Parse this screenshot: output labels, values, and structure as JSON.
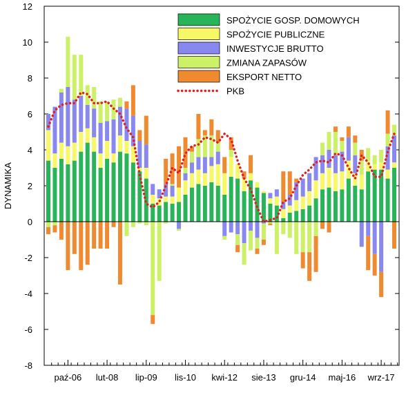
{
  "chart_data": {
    "type": "bar",
    "stacked": true,
    "ylabel": "DYNAMIKA",
    "xlabel": "",
    "ylim": [
      -8,
      12
    ],
    "yticks": [
      -8,
      -6,
      -4,
      -2,
      0,
      2,
      4,
      6,
      8,
      10,
      12
    ],
    "x_tick_labels": [
      {
        "label": "paź-06",
        "index": 5
      },
      {
        "label": "lut-08",
        "index": 11
      },
      {
        "label": "lip-09",
        "index": 17
      },
      {
        "label": "lis-10",
        "index": 23
      },
      {
        "label": "kwi-12",
        "index": 29
      },
      {
        "label": "sie-13",
        "index": 35
      },
      {
        "label": "gru-14",
        "index": 41
      },
      {
        "label": "maj-16",
        "index": 47
      },
      {
        "label": "wrz-17",
        "index": 53
      }
    ],
    "n_periods": 54,
    "legend_position": "top-right",
    "series": [
      {
        "name": "SPOŻYCIE GOSP. DOMOWYCH",
        "color": "#2ab45a",
        "values": [
          3.4,
          3.0,
          3.5,
          3.2,
          3.4,
          3.9,
          4.4,
          3.9,
          3.0,
          3.5,
          3.3,
          3.9,
          3.8,
          3.3,
          2.8,
          2.4,
          1.0,
          0.9,
          1.1,
          1.0,
          1.1,
          1.5,
          1.9,
          2.1,
          2.0,
          2.2,
          2.0,
          1.5,
          2.5,
          2.4,
          1.7,
          2.3,
          1.9,
          1.6,
          1.0,
          0.9,
          0.2,
          0.5,
          0.6,
          0.7,
          0.9,
          1.3,
          1.8,
          1.9,
          1.7,
          1.8,
          2.4,
          2.0,
          1.8,
          2.8,
          2.9,
          2.9,
          2.4,
          3.0
        ]
      },
      {
        "name": "SPOŻYCIE PUBLICZNE",
        "color": "#f8f867",
        "values": [
          1.7,
          0.8,
          0.9,
          1.0,
          1.0,
          1.1,
          0.8,
          0.8,
          0.8,
          1.0,
          0.5,
          0.9,
          0.7,
          0.9,
          0.2,
          0.6,
          0.5,
          0.4,
          0.3,
          0.4,
          0.8,
          0.8,
          0.8,
          0.8,
          0.7,
          0.9,
          1.2,
          1.2,
          1.1,
          0.8,
          0.7,
          0.4,
          0.3,
          0.1,
          0.3,
          0.5,
          0.5,
          0.4,
          0.6,
          0.7,
          0.8,
          1.0,
          0.9,
          1.1,
          1.0,
          1.0,
          1.0,
          0.7,
          0.8,
          0.6,
          0.3,
          0.4,
          0.5,
          0.3
        ]
      },
      {
        "name": "INWESTYCJE BRUTTO",
        "color": "#8888ee",
        "values": [
          0.9,
          2.6,
          2.8,
          3.3,
          2.4,
          2.0,
          1.3,
          1.6,
          1.7,
          1.1,
          1.9,
          1.6,
          1.8,
          1.7,
          1.5,
          1.3,
          0.6,
          0.5,
          0.7,
          0.6,
          -0.4,
          0.4,
          0.6,
          0.7,
          0.9,
          0.5,
          0.7,
          -0.8,
          -0.6,
          -0.7,
          -1.2,
          -0.5,
          -0.9,
          -0.1,
          0.3,
          0.4,
          0.4,
          0.6,
          1.0,
          1.0,
          1.0,
          1.3,
          1.0,
          1.0,
          1.0,
          1.1,
          1.3,
          1.0,
          -1.4,
          -0.8,
          -1.8,
          -2.8,
          1.3,
          1.5
        ]
      },
      {
        "name": "ZMIANA ZAPASÓW",
        "color": "#ccf066",
        "values": [
          -0.3,
          -0.2,
          0.2,
          2.8,
          2.5,
          2.3,
          1.1,
          1.2,
          1.2,
          1.1,
          1.1,
          0.5,
          -0.8,
          -0.3,
          -0.1,
          -0.2,
          -5.2,
          -3.3,
          -0.1,
          0.1,
          -0.1,
          0.3,
          0.6,
          1.0,
          1.2,
          1.2,
          0.5,
          -0.2,
          0.4,
          -0.6,
          -1.2,
          -1.1,
          -0.6,
          -0.9,
          -0.1,
          -1.8,
          -0.7,
          -0.9,
          -1.8,
          -1.7,
          -1.7,
          -0.8,
          0.7,
          1.0,
          1.3,
          0.6,
          0.0,
          0.7,
          0.8,
          0.7,
          0.5,
          0.7,
          0.7,
          0.6
        ]
      },
      {
        "name": "EKSPORT NETTO",
        "color": "#f08a30",
        "values": [
          -0.4,
          -0.4,
          -1.0,
          -2.7,
          -1.8,
          -2.7,
          -2.4,
          -1.5,
          -1.5,
          -1.5,
          -0.3,
          -3.5,
          0.4,
          1.7,
          0.6,
          1.6,
          -0.5,
          0.0,
          1.4,
          1.7,
          2.3,
          1.7,
          0.3,
          1.4,
          0.3,
          0.9,
          0.7,
          0.9,
          0.7,
          -0.4,
          0.4,
          1.0,
          -0.3,
          -0.3,
          -0.1,
          0.0,
          1.7,
          1.3,
          0.2,
          -0.9,
          -1.6,
          -2.0,
          -0.4,
          -0.6,
          0.3,
          0.2,
          0.6,
          0.4,
          0.6,
          -1.9,
          -1.2,
          -1.4,
          1.3,
          -1.5
        ]
      },
      {
        "name": "PKB",
        "color": "#e02020",
        "kind": "line",
        "values": [
          5.3,
          6.2,
          6.5,
          6.6,
          6.6,
          7.2,
          7.1,
          6.6,
          6.6,
          6.7,
          6.3,
          6.0,
          5.2,
          4.7,
          2.6,
          1.0,
          0.8,
          1.1,
          2.0,
          3.0,
          2.7,
          3.8,
          4.2,
          4.3,
          4.7,
          4.6,
          4.4,
          4.9,
          4.6,
          3.4,
          2.4,
          1.8,
          0.8,
          0.0,
          0.1,
          0.2,
          1.1,
          1.3,
          2.0,
          2.6,
          2.9,
          3.3,
          3.4,
          3.3,
          3.8,
          3.7,
          3.0,
          2.4,
          3.7,
          3.3,
          2.5,
          2.5,
          3.9,
          4.9
        ]
      }
    ]
  }
}
